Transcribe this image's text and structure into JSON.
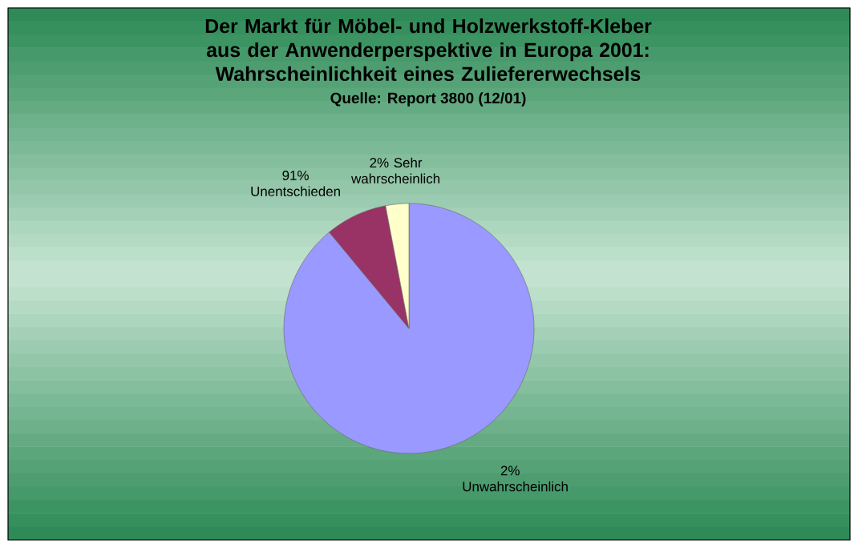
{
  "chart_data": {
    "type": "pie",
    "title": "Der Markt für Möbel- und Holzwerkstoff-Kleber aus der Anwenderperspektive in Europa 2001: Wahrscheinlichkeit eines Zuliefererwechsels",
    "subtitle": "Quelle: Report 3800 (12/01)",
    "categories": [
      "2% Unwahrscheinlich",
      "91% Unentschieden",
      "2% Sehr wahrscheinlich"
    ],
    "values": [
      89,
      8,
      3
    ],
    "colors": [
      "#9999ff",
      "#993366",
      "#ffffcc"
    ]
  }
}
